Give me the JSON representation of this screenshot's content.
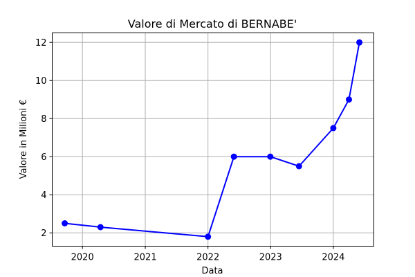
{
  "chart_data": {
    "type": "line",
    "title": "Valore di Mercato di BERNABE'",
    "xlabel": "Data",
    "ylabel": "Valore in Milioni €",
    "x_axis_type": "date",
    "x": [
      "2019-09-20",
      "2020-04-15",
      "2022-01-01",
      "2022-06-01",
      "2022-12-30",
      "2023-06-15",
      "2024-01-01",
      "2024-04-01",
      "2024-06-01"
    ],
    "series": [
      {
        "values": [
          2.5,
          2.3,
          1.8,
          6.0,
          6.0,
          5.5,
          7.5,
          9.0,
          12.0
        ],
        "color": "#0000ff",
        "marker": "circle"
      }
    ],
    "xlim": [
      "2019-07-09",
      "2024-08-24"
    ],
    "ylim": [
      1.3,
      12.5
    ],
    "x_ticks": [
      "2020",
      "2021",
      "2022",
      "2023",
      "2024"
    ],
    "y_ticks": [
      2,
      4,
      6,
      8,
      10,
      12
    ],
    "grid": true
  }
}
